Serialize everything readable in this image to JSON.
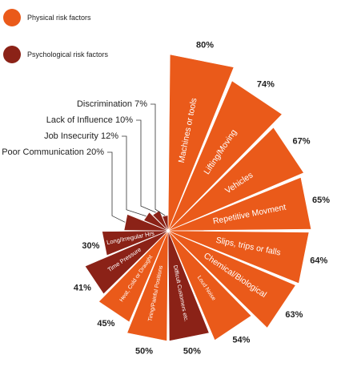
{
  "chart_data": {
    "type": "radial_bar",
    "legend": [
      {
        "label": "Physical risk factors",
        "color": "#ea5a1a"
      },
      {
        "label": "Psychological risk factors",
        "color": "#8b2217"
      }
    ],
    "categories": [
      {
        "label": "Machines or tools",
        "value": 80,
        "value_label": "80%",
        "group": "physical"
      },
      {
        "label": "Lifting/Moving",
        "value": 74,
        "value_label": "74%",
        "group": "physical"
      },
      {
        "label": "Vehicles",
        "value": 67,
        "value_label": "67%",
        "group": "physical"
      },
      {
        "label": "Repetitive Movment",
        "value": 65,
        "value_label": "65%",
        "group": "physical"
      },
      {
        "label": "Slips, trips or falls",
        "value": 64,
        "value_label": "64%",
        "group": "physical"
      },
      {
        "label": "Chemical/Biological",
        "value": 63,
        "value_label": "63%",
        "group": "physical"
      },
      {
        "label": "Loud Noise",
        "value": 54,
        "value_label": "54%",
        "group": "physical"
      },
      {
        "label": "Difficult Customers etc.",
        "value": 50,
        "value_label": "50%",
        "group": "psychological"
      },
      {
        "label": "Tiring/Painful Positions",
        "value": 50,
        "value_label": "50%",
        "group": "physical"
      },
      {
        "label": "Heat, Cold or Draught",
        "value": 45,
        "value_label": "45%",
        "group": "physical"
      },
      {
        "label": "Time Pressure",
        "value": 41,
        "value_label": "41%",
        "group": "psychological"
      },
      {
        "label": "Long/Irregular Hrs",
        "value": 30,
        "value_label": "30%",
        "group": "psychological"
      },
      {
        "label": "Poor Communication",
        "value": 20,
        "value_label": "Poor Communication 20%",
        "group": "psychological"
      },
      {
        "label": "Job Insecurity",
        "value": 12,
        "value_label": "Job Insecurity 12%",
        "group": "psychological"
      },
      {
        "label": "Lack of Influence",
        "value": 10,
        "value_label": "Lack of Influence 10%",
        "group": "psychological"
      },
      {
        "label": "Discrimination",
        "value": 7,
        "value_label": "Discrimination 7%",
        "group": "psychological"
      }
    ],
    "colors": {
      "physical": "#ea5a1a",
      "psychological": "#8b2217",
      "label_text": "#ffffff",
      "value_text": "#222222"
    }
  }
}
